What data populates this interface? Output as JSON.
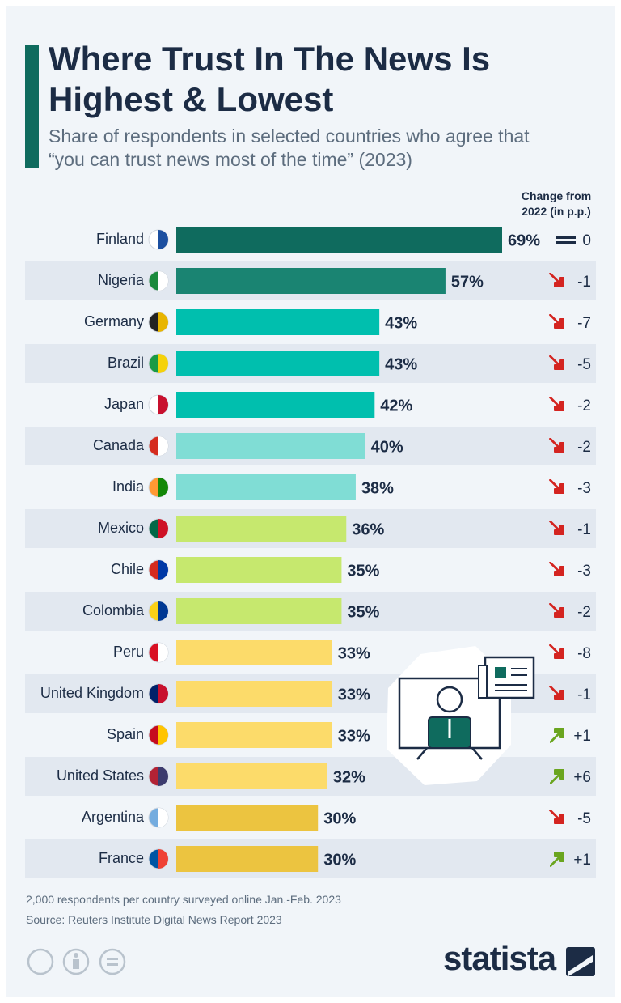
{
  "chart_data": {
    "type": "bar",
    "title": "Where Trust In The News Is Highest & Lowest",
    "subtitle": "Share of respondents in selected countries who agree that “you can trust news most of the time” (2023)",
    "categories": [
      "Finland",
      "Nigeria",
      "Germany",
      "Brazil",
      "Japan",
      "Canada",
      "India",
      "Mexico",
      "Chile",
      "Colombia",
      "Peru",
      "United Kingdom",
      "Spain",
      "United States",
      "Argentina",
      "France"
    ],
    "values": [
      69,
      57,
      43,
      43,
      42,
      40,
      38,
      36,
      35,
      35,
      33,
      33,
      33,
      32,
      30,
      30
    ],
    "value_labels": [
      "69%",
      "57%",
      "43%",
      "43%",
      "42%",
      "40%",
      "38%",
      "36%",
      "35%",
      "35%",
      "33%",
      "33%",
      "33%",
      "32%",
      "30%",
      "30%"
    ],
    "colors": [
      "#0f6b5e",
      "#1a8472",
      "#00bfae",
      "#00bfae",
      "#00bfae",
      "#80ddd5",
      "#80ddd5",
      "#c6e86e",
      "#c6e86e",
      "#c6e86e",
      "#fcdb6a",
      "#fcdb6a",
      "#fcdb6a",
      "#fcdb6a",
      "#ecc440",
      "#ecc440"
    ],
    "xlim": [
      0,
      69
    ],
    "change": {
      "title": "Change from 2022 (in p.p.)",
      "values": [
        0,
        -1,
        -7,
        -5,
        -2,
        -2,
        -3,
        -1,
        -3,
        -2,
        -8,
        -1,
        1,
        6,
        -5,
        1
      ],
      "value_labels": [
        "0",
        "-1",
        "-7",
        "-5",
        "-2",
        "-2",
        "-3",
        "-1",
        "-3",
        "-2",
        "-8",
        "-1",
        "+1",
        "+6",
        "-5",
        "+1"
      ]
    },
    "notes": "2,000 respondents per country surveyed online Jan.-Feb. 2023",
    "source": "Source: Reuters Institute Digital News Report 2023",
    "brand": "statista"
  }
}
